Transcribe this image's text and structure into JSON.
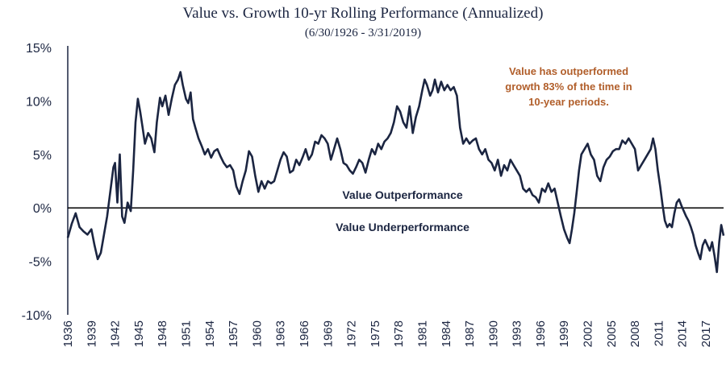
{
  "chart_data": {
    "type": "line",
    "title": "Value vs. Growth 10-yr Rolling Performance (Annualized)",
    "subtitle": "(6/30/1926 - 3/31/2019)",
    "xlabel": "",
    "ylabel": "",
    "xlim": [
      1936.0,
      2019.25
    ],
    "ylim": [
      -10,
      15
    ],
    "y_ticks": [
      "15%",
      "10%",
      "5%",
      "0%",
      "-5%",
      "-10%"
    ],
    "y_tick_values": [
      15,
      10,
      5,
      0,
      -5,
      -10
    ],
    "x_ticks": [
      "1936",
      "1939",
      "1942",
      "1945",
      "1948",
      "1951",
      "1954",
      "1957",
      "1960",
      "1963",
      "1966",
      "1969",
      "1972",
      "1975",
      "1978",
      "1981",
      "1984",
      "1987",
      "1990",
      "1993",
      "1996",
      "1999",
      "2002",
      "2005",
      "2008",
      "2011",
      "2014",
      "2017"
    ],
    "annotations": {
      "above_zero": "Value Outperformance",
      "below_zero": "Value Underperformance",
      "note_lines": [
        "Value has outperformed",
        "growth 83% of the time in",
        "10-year periods."
      ]
    },
    "grid": false,
    "legend": "none",
    "colors": {
      "line": "#1b2541",
      "zero_line": "#000000",
      "note": "#b15e2a"
    },
    "series": [
      {
        "values": [
          [
            1936.0,
            -2.8
          ],
          [
            1936.5,
            -1.5
          ],
          [
            1937.0,
            -0.5
          ],
          [
            1937.5,
            -1.8
          ],
          [
            1938.0,
            -2.2
          ],
          [
            1938.5,
            -2.5
          ],
          [
            1939.0,
            -2.0
          ],
          [
            1939.4,
            -3.5
          ],
          [
            1939.8,
            -4.8
          ],
          [
            1940.2,
            -4.2
          ],
          [
            1940.6,
            -2.5
          ],
          [
            1941.0,
            -0.8
          ],
          [
            1941.4,
            1.5
          ],
          [
            1941.8,
            3.8
          ],
          [
            1942.0,
            4.2
          ],
          [
            1942.3,
            0.5
          ],
          [
            1942.6,
            5.0
          ],
          [
            1942.9,
            -0.8
          ],
          [
            1943.2,
            -1.4
          ],
          [
            1943.6,
            0.5
          ],
          [
            1944.0,
            -0.3
          ],
          [
            1944.3,
            3.5
          ],
          [
            1944.6,
            8.0
          ],
          [
            1944.9,
            10.2
          ],
          [
            1945.2,
            9.0
          ],
          [
            1945.5,
            7.5
          ],
          [
            1945.8,
            6.0
          ],
          [
            1946.2,
            7.0
          ],
          [
            1946.6,
            6.5
          ],
          [
            1947.0,
            5.2
          ],
          [
            1947.3,
            8.0
          ],
          [
            1947.7,
            10.3
          ],
          [
            1948.0,
            9.5
          ],
          [
            1948.4,
            10.5
          ],
          [
            1948.8,
            8.7
          ],
          [
            1949.2,
            10.2
          ],
          [
            1949.6,
            11.5
          ],
          [
            1950.0,
            12.0
          ],
          [
            1950.3,
            12.7
          ],
          [
            1950.6,
            11.5
          ],
          [
            1951.0,
            10.2
          ],
          [
            1951.3,
            9.8
          ],
          [
            1951.6,
            10.8
          ],
          [
            1951.9,
            8.3
          ],
          [
            1952.2,
            7.5
          ],
          [
            1952.6,
            6.5
          ],
          [
            1953.0,
            5.8
          ],
          [
            1953.4,
            5.0
          ],
          [
            1953.8,
            5.5
          ],
          [
            1954.2,
            4.7
          ],
          [
            1954.6,
            5.3
          ],
          [
            1955.0,
            5.5
          ],
          [
            1955.4,
            4.8
          ],
          [
            1955.8,
            4.2
          ],
          [
            1956.2,
            3.8
          ],
          [
            1956.6,
            4.0
          ],
          [
            1957.0,
            3.5
          ],
          [
            1957.4,
            2.0
          ],
          [
            1957.8,
            1.3
          ],
          [
            1958.2,
            2.5
          ],
          [
            1958.6,
            3.5
          ],
          [
            1959.0,
            5.3
          ],
          [
            1959.4,
            4.8
          ],
          [
            1959.8,
            3.0
          ],
          [
            1960.2,
            1.5
          ],
          [
            1960.6,
            2.5
          ],
          [
            1961.0,
            1.8
          ],
          [
            1961.4,
            2.5
          ],
          [
            1961.8,
            2.3
          ],
          [
            1962.2,
            2.5
          ],
          [
            1962.6,
            3.5
          ],
          [
            1963.0,
            4.5
          ],
          [
            1963.4,
            5.2
          ],
          [
            1963.8,
            4.8
          ],
          [
            1964.2,
            3.3
          ],
          [
            1964.6,
            3.5
          ],
          [
            1965.0,
            4.5
          ],
          [
            1965.4,
            4.0
          ],
          [
            1965.8,
            4.7
          ],
          [
            1966.2,
            5.5
          ],
          [
            1966.6,
            4.5
          ],
          [
            1967.0,
            5.0
          ],
          [
            1967.4,
            6.2
          ],
          [
            1967.8,
            6.0
          ],
          [
            1968.2,
            6.8
          ],
          [
            1968.6,
            6.5
          ],
          [
            1969.0,
            6.0
          ],
          [
            1969.4,
            4.5
          ],
          [
            1969.8,
            5.5
          ],
          [
            1970.2,
            6.5
          ],
          [
            1970.6,
            5.5
          ],
          [
            1971.0,
            4.2
          ],
          [
            1971.4,
            4.0
          ],
          [
            1971.8,
            3.5
          ],
          [
            1972.2,
            3.2
          ],
          [
            1972.6,
            3.8
          ],
          [
            1973.0,
            4.5
          ],
          [
            1973.4,
            4.2
          ],
          [
            1973.8,
            3.3
          ],
          [
            1974.2,
            4.5
          ],
          [
            1974.6,
            5.5
          ],
          [
            1975.0,
            5.0
          ],
          [
            1975.4,
            6.0
          ],
          [
            1975.8,
            5.5
          ],
          [
            1976.2,
            6.2
          ],
          [
            1976.6,
            6.5
          ],
          [
            1977.0,
            7.0
          ],
          [
            1977.4,
            8.0
          ],
          [
            1977.8,
            9.5
          ],
          [
            1978.2,
            9.0
          ],
          [
            1978.6,
            8.0
          ],
          [
            1979.0,
            7.5
          ],
          [
            1979.4,
            9.5
          ],
          [
            1979.8,
            7.0
          ],
          [
            1980.2,
            8.5
          ],
          [
            1980.6,
            9.5
          ],
          [
            1981.0,
            11.0
          ],
          [
            1981.3,
            12.0
          ],
          [
            1981.6,
            11.5
          ],
          [
            1982.0,
            10.5
          ],
          [
            1982.3,
            11.0
          ],
          [
            1982.6,
            12.0
          ],
          [
            1983.0,
            10.8
          ],
          [
            1983.4,
            11.8
          ],
          [
            1983.8,
            11.0
          ],
          [
            1984.2,
            11.5
          ],
          [
            1984.6,
            11.0
          ],
          [
            1985.0,
            11.3
          ],
          [
            1985.4,
            10.5
          ],
          [
            1985.8,
            7.5
          ],
          [
            1986.2,
            6.0
          ],
          [
            1986.6,
            6.5
          ],
          [
            1987.0,
            6.0
          ],
          [
            1987.4,
            6.3
          ],
          [
            1987.8,
            6.5
          ],
          [
            1988.2,
            5.5
          ],
          [
            1988.6,
            5.0
          ],
          [
            1989.0,
            5.5
          ],
          [
            1989.4,
            4.5
          ],
          [
            1989.8,
            4.2
          ],
          [
            1990.2,
            3.5
          ],
          [
            1990.6,
            4.5
          ],
          [
            1991.0,
            3.0
          ],
          [
            1991.4,
            4.0
          ],
          [
            1991.8,
            3.5
          ],
          [
            1992.2,
            4.5
          ],
          [
            1992.6,
            4.0
          ],
          [
            1993.0,
            3.5
          ],
          [
            1993.4,
            3.0
          ],
          [
            1993.8,
            1.8
          ],
          [
            1994.2,
            1.5
          ],
          [
            1994.6,
            1.8
          ],
          [
            1995.0,
            1.2
          ],
          [
            1995.4,
            1.0
          ],
          [
            1995.8,
            0.5
          ],
          [
            1996.2,
            1.8
          ],
          [
            1996.6,
            1.5
          ],
          [
            1997.0,
            2.3
          ],
          [
            1997.4,
            1.5
          ],
          [
            1997.8,
            1.8
          ],
          [
            1998.2,
            0.5
          ],
          [
            1998.6,
            -0.8
          ],
          [
            1999.0,
            -2.0
          ],
          [
            1999.4,
            -2.8
          ],
          [
            1999.7,
            -3.3
          ],
          [
            2000.0,
            -2.0
          ],
          [
            2000.3,
            -0.5
          ],
          [
            2000.6,
            1.5
          ],
          [
            2000.9,
            3.5
          ],
          [
            2001.2,
            5.0
          ],
          [
            2001.6,
            5.5
          ],
          [
            2002.0,
            6.0
          ],
          [
            2002.4,
            5.0
          ],
          [
            2002.8,
            4.5
          ],
          [
            2003.2,
            3.0
          ],
          [
            2003.6,
            2.5
          ],
          [
            2004.0,
            3.8
          ],
          [
            2004.4,
            4.5
          ],
          [
            2004.8,
            4.8
          ],
          [
            2005.2,
            5.3
          ],
          [
            2005.6,
            5.5
          ],
          [
            2006.0,
            5.5
          ],
          [
            2006.4,
            6.3
          ],
          [
            2006.8,
            6.0
          ],
          [
            2007.2,
            6.5
          ],
          [
            2007.6,
            6.0
          ],
          [
            2008.0,
            5.5
          ],
          [
            2008.4,
            3.5
          ],
          [
            2008.8,
            4.0
          ],
          [
            2009.2,
            4.5
          ],
          [
            2009.6,
            5.0
          ],
          [
            2010.0,
            5.5
          ],
          [
            2010.3,
            6.5
          ],
          [
            2010.6,
            5.5
          ],
          [
            2010.9,
            3.5
          ],
          [
            2011.2,
            2.0
          ],
          [
            2011.5,
            0.3
          ],
          [
            2011.8,
            -1.2
          ],
          [
            2012.1,
            -1.8
          ],
          [
            2012.4,
            -1.5
          ],
          [
            2012.7,
            -1.8
          ],
          [
            2013.0,
            -0.5
          ],
          [
            2013.3,
            0.5
          ],
          [
            2013.6,
            0.8
          ],
          [
            2013.9,
            0.2
          ],
          [
            2014.2,
            -0.3
          ],
          [
            2014.5,
            -0.8
          ],
          [
            2014.8,
            -1.2
          ],
          [
            2015.1,
            -1.8
          ],
          [
            2015.4,
            -2.5
          ],
          [
            2015.7,
            -3.5
          ],
          [
            2016.0,
            -4.2
          ],
          [
            2016.3,
            -4.8
          ],
          [
            2016.6,
            -3.5
          ],
          [
            2016.9,
            -3.0
          ],
          [
            2017.2,
            -3.5
          ],
          [
            2017.5,
            -4.0
          ],
          [
            2017.8,
            -3.2
          ],
          [
            2018.1,
            -4.5
          ],
          [
            2018.4,
            -6.0
          ],
          [
            2018.7,
            -3.2
          ],
          [
            2018.95,
            -1.6
          ],
          [
            2019.25,
            -2.6
          ]
        ]
      }
    ]
  }
}
